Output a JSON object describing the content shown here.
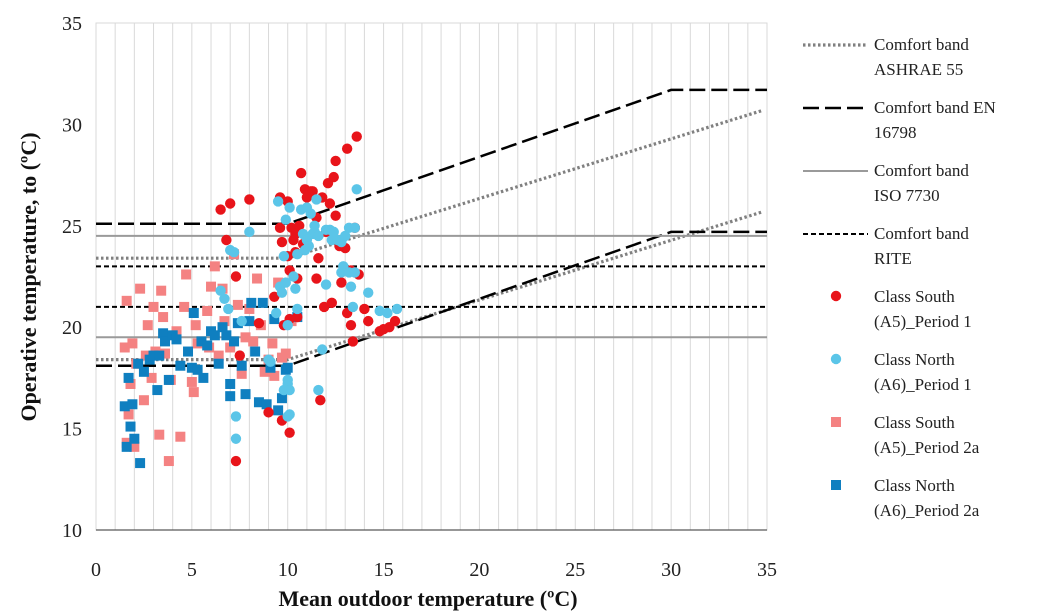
{
  "chart_data": {
    "type": "scatter",
    "xlabel": "Mean outdoor temperature (ºC)",
    "ylabel": "Operative temperature, to (ºC)",
    "xlim": [
      0,
      35
    ],
    "ylim": [
      10,
      35
    ],
    "x_ticks": [
      "0",
      "5",
      "10",
      "15",
      "20",
      "25",
      "30",
      "35"
    ],
    "y_ticks": [
      "10",
      "15",
      "20",
      "25",
      "30",
      "35"
    ],
    "grid": "vertical, every 1 ºC",
    "legend_position": "right",
    "lines": [
      {
        "name": "Comfort band ASHRAE 55",
        "legend_lines": [
          "Comfort band",
          "ASHRAE 55"
        ],
        "style": "dotted",
        "color": "#808080",
        "segments": [
          [
            [
              0,
              23.4
            ],
            [
              10,
              23.4
            ],
            [
              34.8,
              30.7
            ]
          ],
          [
            [
              0,
              18.4
            ],
            [
              10,
              18.4
            ],
            [
              34.8,
              25.7
            ]
          ]
        ]
      },
      {
        "name": "Comfort band EN 16798",
        "legend_lines": [
          "Comfort band EN",
          "16798"
        ],
        "style": "long-dash",
        "color": "#000000",
        "segments": [
          [
            [
              0,
              25.1
            ],
            [
              10,
              25.1
            ],
            [
              30,
              31.7
            ],
            [
              35,
              31.7
            ]
          ],
          [
            [
              0,
              18.1
            ],
            [
              10,
              18.1
            ],
            [
              30,
              24.7
            ],
            [
              35,
              24.7
            ]
          ]
        ]
      },
      {
        "name": "Comfort band ISO 7730",
        "legend_lines": [
          "Comfort band",
          "ISO 7730"
        ],
        "style": "solid",
        "color": "#9a9a9a",
        "segments": [
          [
            [
              0,
              24.5
            ],
            [
              35,
              24.5
            ]
          ],
          [
            [
              0,
              19.5
            ],
            [
              35,
              19.5
            ]
          ]
        ]
      },
      {
        "name": "Comfort band RITE",
        "legend_lines": [
          "Comfort band",
          "RITE"
        ],
        "style": "short-dash",
        "color": "#000000",
        "segments": [
          [
            [
              0,
              23.0
            ],
            [
              35,
              23.0
            ]
          ],
          [
            [
              0,
              21.0
            ],
            [
              35,
              21.0
            ]
          ]
        ]
      }
    ],
    "series": [
      {
        "name": "Class South (A5)_Period 1",
        "legend_lines": [
          "Class South",
          "(A5)_Period 1"
        ],
        "marker": "circle",
        "color": "#e8141a",
        "points": [
          [
            6.5,
            25.8
          ],
          [
            6.8,
            24.3
          ],
          [
            7.0,
            26.1
          ],
          [
            7.3,
            22.5
          ],
          [
            7.3,
            13.4
          ],
          [
            7.5,
            18.6
          ],
          [
            8.0,
            26.3
          ],
          [
            8.5,
            20.2
          ],
          [
            9.0,
            15.8
          ],
          [
            9.3,
            21.5
          ],
          [
            9.6,
            26.4
          ],
          [
            9.6,
            24.9
          ],
          [
            9.7,
            24.2
          ],
          [
            9.7,
            15.4
          ],
          [
            9.8,
            20.1
          ],
          [
            10.0,
            26.2
          ],
          [
            10.0,
            23.5
          ],
          [
            10.1,
            22.8
          ],
          [
            10.1,
            20.4
          ],
          [
            10.1,
            14.8
          ],
          [
            10.2,
            24.9
          ],
          [
            10.3,
            24.3
          ],
          [
            10.4,
            24.6
          ],
          [
            10.4,
            23.7
          ],
          [
            10.5,
            22.4
          ],
          [
            10.5,
            20.5
          ],
          [
            10.6,
            25.0
          ],
          [
            10.6,
            24.7
          ],
          [
            10.7,
            27.6
          ],
          [
            10.8,
            24.1
          ],
          [
            10.9,
            26.8
          ],
          [
            11.0,
            26.4
          ],
          [
            11.0,
            24.4
          ],
          [
            11.2,
            26.7
          ],
          [
            11.3,
            26.7
          ],
          [
            11.5,
            25.4
          ],
          [
            11.5,
            22.4
          ],
          [
            11.6,
            23.4
          ],
          [
            11.7,
            16.4
          ],
          [
            11.8,
            26.4
          ],
          [
            11.9,
            21.0
          ],
          [
            12.0,
            24.7
          ],
          [
            12.1,
            27.1
          ],
          [
            12.2,
            26.1
          ],
          [
            12.3,
            21.2
          ],
          [
            12.4,
            27.4
          ],
          [
            12.5,
            28.2
          ],
          [
            12.5,
            25.5
          ],
          [
            12.7,
            24.0
          ],
          [
            12.8,
            22.2
          ],
          [
            13.0,
            23.9
          ],
          [
            13.1,
            20.7
          ],
          [
            13.1,
            28.8
          ],
          [
            13.3,
            22.8
          ],
          [
            13.3,
            20.1
          ],
          [
            13.4,
            19.3
          ],
          [
            13.5,
            24.9
          ],
          [
            13.6,
            29.4
          ],
          [
            13.7,
            22.6
          ],
          [
            14.0,
            20.9
          ],
          [
            14.2,
            20.3
          ],
          [
            14.8,
            19.8
          ],
          [
            15.0,
            19.9
          ],
          [
            15.3,
            20.0
          ],
          [
            15.6,
            20.3
          ]
        ]
      },
      {
        "name": "Class North (A6)_Period 1",
        "legend_lines": [
          "Class North",
          "(A6)_Period 1"
        ],
        "marker": "circle",
        "color": "#5bc5e8",
        "points": [
          [
            6.5,
            21.8
          ],
          [
            6.7,
            21.4
          ],
          [
            6.9,
            20.9
          ],
          [
            7.0,
            23.8
          ],
          [
            7.2,
            23.7
          ],
          [
            7.3,
            15.6
          ],
          [
            7.3,
            14.5
          ],
          [
            7.6,
            20.3
          ],
          [
            8.0,
            24.7
          ],
          [
            9.0,
            18.4
          ],
          [
            9.1,
            18.3
          ],
          [
            9.4,
            20.7
          ],
          [
            9.5,
            26.2
          ],
          [
            9.6,
            22.0
          ],
          [
            9.7,
            21.7
          ],
          [
            9.8,
            23.5
          ],
          [
            9.8,
            16.9
          ],
          [
            9.9,
            25.3
          ],
          [
            9.9,
            22.2
          ],
          [
            10.0,
            20.1
          ],
          [
            10.0,
            17.2
          ],
          [
            10.0,
            17.4
          ],
          [
            10.0,
            15.6
          ],
          [
            10.1,
            25.9
          ],
          [
            10.1,
            15.7
          ],
          [
            10.1,
            16.9
          ],
          [
            10.3,
            22.5
          ],
          [
            10.4,
            21.9
          ],
          [
            10.5,
            23.6
          ],
          [
            10.5,
            20.9
          ],
          [
            10.7,
            25.8
          ],
          [
            10.8,
            24.6
          ],
          [
            10.9,
            23.8
          ],
          [
            11.0,
            25.9
          ],
          [
            11.0,
            24.3
          ],
          [
            11.1,
            24.0
          ],
          [
            11.2,
            25.6
          ],
          [
            11.3,
            24.6
          ],
          [
            11.4,
            24.7
          ],
          [
            11.4,
            25.0
          ],
          [
            11.5,
            26.3
          ],
          [
            11.6,
            24.5
          ],
          [
            11.6,
            16.9
          ],
          [
            11.8,
            18.9
          ],
          [
            12.0,
            22.1
          ],
          [
            12.0,
            24.8
          ],
          [
            12.2,
            24.8
          ],
          [
            12.3,
            24.3
          ],
          [
            12.4,
            24.7
          ],
          [
            12.6,
            24.3
          ],
          [
            12.8,
            22.7
          ],
          [
            12.8,
            24.2
          ],
          [
            12.9,
            23.0
          ],
          [
            13.0,
            24.5
          ],
          [
            13.2,
            22.7
          ],
          [
            13.2,
            24.9
          ],
          [
            13.3,
            22.0
          ],
          [
            13.4,
            21.0
          ],
          [
            13.5,
            22.7
          ],
          [
            13.5,
            24.9
          ],
          [
            13.6,
            26.8
          ],
          [
            14.2,
            21.7
          ],
          [
            14.8,
            20.8
          ],
          [
            15.2,
            20.7
          ],
          [
            15.7,
            20.9
          ]
        ]
      },
      {
        "name": "Class South (A5)_Period 2a",
        "legend_lines": [
          "Class South",
          "(A5)_Period 2a"
        ],
        "marker": "square",
        "color": "#f48282",
        "points": [
          [
            1.5,
            19.0
          ],
          [
            1.6,
            21.3
          ],
          [
            1.6,
            14.3
          ],
          [
            1.7,
            15.7
          ],
          [
            1.8,
            17.2
          ],
          [
            1.9,
            19.2
          ],
          [
            2.0,
            14.1
          ],
          [
            2.1,
            18.2
          ],
          [
            2.3,
            21.9
          ],
          [
            2.5,
            16.4
          ],
          [
            2.6,
            18.6
          ],
          [
            2.7,
            20.1
          ],
          [
            2.9,
            17.5
          ],
          [
            3.0,
            21.0
          ],
          [
            3.1,
            18.8
          ],
          [
            3.3,
            14.7
          ],
          [
            3.4,
            21.8
          ],
          [
            3.5,
            20.5
          ],
          [
            3.6,
            18.7
          ],
          [
            3.8,
            13.4
          ],
          [
            3.9,
            17.4
          ],
          [
            4.2,
            19.8
          ],
          [
            4.4,
            14.6
          ],
          [
            4.6,
            21.0
          ],
          [
            4.7,
            22.6
          ],
          [
            5.0,
            17.3
          ],
          [
            5.1,
            16.8
          ],
          [
            5.2,
            20.1
          ],
          [
            5.3,
            19.2
          ],
          [
            5.8,
            20.8
          ],
          [
            5.9,
            19.0
          ],
          [
            6.0,
            22.0
          ],
          [
            6.2,
            23.0
          ],
          [
            6.4,
            18.6
          ],
          [
            6.6,
            21.9
          ],
          [
            6.7,
            20.3
          ],
          [
            7.0,
            19.0
          ],
          [
            7.2,
            23.6
          ],
          [
            7.4,
            21.1
          ],
          [
            7.6,
            17.7
          ],
          [
            7.8,
            19.5
          ],
          [
            8.0,
            20.9
          ],
          [
            8.2,
            19.3
          ],
          [
            8.4,
            22.4
          ],
          [
            8.6,
            20.1
          ],
          [
            8.8,
            17.8
          ],
          [
            9.0,
            18.4
          ],
          [
            9.2,
            19.2
          ],
          [
            9.3,
            17.6
          ],
          [
            9.5,
            22.2
          ],
          [
            9.7,
            18.5
          ],
          [
            9.9,
            18.7
          ],
          [
            10.2,
            20.3
          ]
        ]
      },
      {
        "name": "Class North (A6)_Period 2a",
        "legend_lines": [
          "Class North",
          "(A6)_Period 2a"
        ],
        "marker": "square",
        "color": "#0f7fc0",
        "points": [
          [
            1.5,
            16.1
          ],
          [
            1.6,
            14.1
          ],
          [
            1.7,
            17.5
          ],
          [
            1.8,
            15.1
          ],
          [
            1.9,
            16.2
          ],
          [
            2.0,
            14.5
          ],
          [
            2.2,
            18.2
          ],
          [
            2.3,
            13.3
          ],
          [
            2.5,
            17.8
          ],
          [
            2.8,
            18.4
          ],
          [
            3.0,
            18.6
          ],
          [
            3.2,
            16.9
          ],
          [
            3.3,
            18.6
          ],
          [
            3.5,
            19.7
          ],
          [
            3.6,
            19.3
          ],
          [
            3.8,
            17.4
          ],
          [
            4.0,
            19.6
          ],
          [
            4.2,
            19.4
          ],
          [
            4.4,
            18.1
          ],
          [
            4.8,
            18.8
          ],
          [
            5.0,
            18.0
          ],
          [
            5.1,
            20.7
          ],
          [
            5.3,
            17.9
          ],
          [
            5.5,
            19.3
          ],
          [
            5.6,
            17.5
          ],
          [
            5.8,
            19.1
          ],
          [
            6.0,
            19.8
          ],
          [
            6.2,
            19.6
          ],
          [
            6.4,
            18.2
          ],
          [
            6.6,
            20.0
          ],
          [
            6.8,
            19.6
          ],
          [
            7.0,
            17.2
          ],
          [
            7.0,
            16.6
          ],
          [
            7.2,
            19.3
          ],
          [
            7.4,
            20.2
          ],
          [
            7.6,
            18.1
          ],
          [
            7.8,
            16.7
          ],
          [
            8.0,
            20.3
          ],
          [
            8.1,
            21.2
          ],
          [
            8.3,
            18.8
          ],
          [
            8.5,
            16.3
          ],
          [
            8.7,
            21.2
          ],
          [
            8.9,
            16.2
          ],
          [
            9.1,
            18.0
          ],
          [
            9.3,
            20.4
          ],
          [
            9.5,
            15.9
          ],
          [
            9.7,
            16.5
          ],
          [
            9.9,
            17.9
          ],
          [
            10.0,
            18.0
          ],
          [
            10.5,
            20.5
          ]
        ]
      }
    ]
  }
}
